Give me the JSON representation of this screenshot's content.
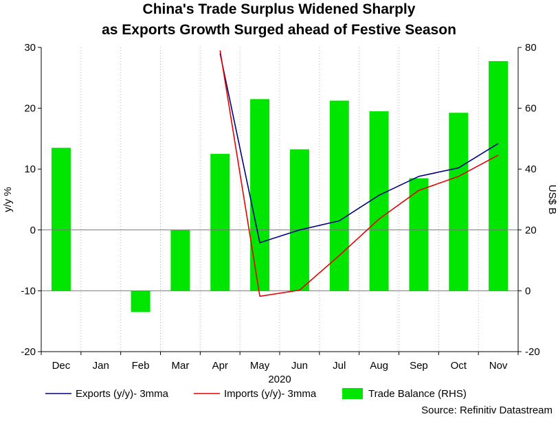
{
  "chart_data": {
    "type": "bar+line",
    "title_line1": "China's Trade Surplus Widened Sharply",
    "title_line2": "as Exports Growth Surged ahead of Festive Season",
    "categories": [
      "Dec",
      "Jan",
      "Feb",
      "Mar",
      "Apr",
      "May",
      "Jun",
      "Jul",
      "Aug",
      "Sep",
      "Oct",
      "Nov"
    ],
    "xlabel": "2020",
    "left_axis": {
      "label": "y/y %",
      "ylim": [
        -20,
        30
      ],
      "ticks": [
        -20,
        -10,
        0,
        10,
        20,
        30
      ]
    },
    "right_axis": {
      "label": "US$ B",
      "ylim": [
        -20,
        80
      ],
      "ticks": [
        -20,
        0,
        20,
        40,
        60,
        80
      ]
    },
    "series": [
      {
        "name": "Exports (y/y)- 3mma",
        "axis": "left",
        "kind": "line",
        "color": "#00007f",
        "values": [
          null,
          null,
          null,
          null,
          29,
          -2.1,
          0,
          1.5,
          5.7,
          8.8,
          10.2,
          14.2
        ]
      },
      {
        "name": "Imports (y/y)- 3mma",
        "axis": "left",
        "kind": "line",
        "color": "#e60000",
        "values": [
          null,
          null,
          null,
          null,
          29.5,
          -10.9,
          -9.9,
          -4.2,
          1.8,
          6.5,
          8.8,
          12.3
        ]
      },
      {
        "name": "Trade Balance (RHS)",
        "axis": "right",
        "kind": "bar",
        "color": "#00e600",
        "values": [
          47,
          null,
          -7,
          20,
          45,
          63,
          46.5,
          62.5,
          59,
          37,
          58.5,
          75.5
        ]
      }
    ],
    "legend": [
      "Exports (y/y)- 3mma",
      "Imports (y/y)- 3mma",
      "Trade Balance (RHS)"
    ],
    "source": "Source: Refinitiv Datastream",
    "grid": true
  }
}
